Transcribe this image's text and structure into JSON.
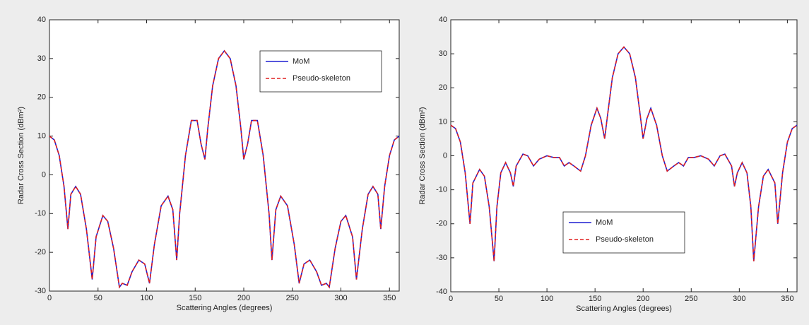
{
  "chart_data": [
    {
      "type": "line",
      "xlabel": "Scattering Angles (degrees)",
      "ylabel": "Radar Cross Section (dBm²)",
      "x": [
        0,
        5,
        10,
        15,
        19,
        22,
        27,
        32,
        38,
        44,
        48,
        55,
        60,
        66,
        72,
        75,
        80,
        85,
        92,
        98,
        103,
        108,
        115,
        122,
        127,
        131,
        134,
        140,
        146,
        152,
        156,
        160,
        163,
        168,
        174,
        180,
        186,
        192,
        197,
        200,
        204,
        208,
        214,
        220,
        226,
        229,
        233,
        238,
        245,
        252,
        257,
        262,
        268,
        275,
        280,
        285,
        288,
        294,
        300,
        305,
        312,
        316,
        322,
        328,
        333,
        338,
        341,
        345,
        350,
        355,
        360
      ],
      "series": [
        {
          "name": "MoM",
          "color": "#1f1fd0",
          "values": [
            10,
            9,
            5,
            -3,
            -14,
            -5,
            -3,
            -5,
            -14,
            -27,
            -16,
            -10.5,
            -12,
            -19,
            -29,
            -28,
            -28.5,
            -25,
            -22,
            -23,
            -28,
            -18,
            -8,
            -5.5,
            -9,
            -22,
            -10,
            5,
            14,
            14,
            8,
            4,
            12,
            23,
            30,
            32,
            30,
            23,
            12,
            4,
            8,
            14,
            14,
            5,
            -10,
            -22,
            -9,
            -5.5,
            -8,
            -18,
            -28,
            -23,
            -22,
            -25,
            -28.5,
            -28,
            -29,
            -19,
            -12,
            -10.5,
            -16,
            -27,
            -14,
            -5,
            -3,
            -5,
            -14,
            -3,
            5,
            9,
            10
          ]
        },
        {
          "name": "Pseudo-skeleton",
          "color": "#e02020",
          "dashed": true,
          "values": [
            10,
            9,
            5,
            -3,
            -14,
            -5,
            -3,
            -5,
            -14,
            -27,
            -16,
            -10.5,
            -12,
            -19,
            -29,
            -28,
            -28.5,
            -25,
            -22,
            -23,
            -28,
            -18,
            -8,
            -5.5,
            -9,
            -22,
            -10,
            5,
            14,
            14,
            8,
            4,
            12,
            23,
            30,
            32,
            30,
            23,
            12,
            4,
            8,
            14,
            14,
            5,
            -10,
            -22,
            -9,
            -5.5,
            -8,
            -18,
            -28,
            -23,
            -22,
            -25,
            -28.5,
            -28,
            -29,
            -19,
            -12,
            -10.5,
            -16,
            -27,
            -14,
            -5,
            -3,
            -5,
            -14,
            -3,
            5,
            9,
            10
          ]
        }
      ],
      "xlim": [
        0,
        360
      ],
      "xticks": [
        0,
        50,
        100,
        150,
        200,
        250,
        300,
        350
      ],
      "ylim": [
        -30,
        40
      ],
      "yticks": [
        -30,
        -20,
        -10,
        0,
        10,
        20,
        30,
        40
      ],
      "legend": "upper right"
    },
    {
      "type": "line",
      "xlabel": "Scattering Angles (degrees)",
      "ylabel": "Radar Cross Section (dBm²)",
      "x": [
        0,
        5,
        10,
        15,
        20,
        23,
        30,
        35,
        40,
        45,
        48,
        52,
        57,
        62,
        65,
        68,
        75,
        80,
        86,
        92,
        100,
        107,
        113,
        118,
        123,
        128,
        135,
        140,
        146,
        152,
        156,
        160,
        163,
        168,
        174,
        180,
        186,
        192,
        197,
        200,
        204,
        208,
        214,
        220,
        225,
        232,
        237,
        242,
        247,
        253,
        260,
        268,
        274,
        280,
        285,
        292,
        295,
        298,
        303,
        308,
        312,
        315,
        320,
        325,
        330,
        337,
        340,
        345,
        350,
        355,
        360
      ],
      "series": [
        {
          "name": "MoM",
          "color": "#1f1fd0",
          "values": [
            9,
            8,
            4,
            -5,
            -20,
            -8,
            -4,
            -6,
            -15,
            -31,
            -15,
            -5,
            -2,
            -5,
            -9,
            -3,
            0.5,
            0,
            -3,
            -1,
            0,
            -0.5,
            -0.5,
            -3,
            -2,
            -3,
            -4.5,
            0,
            9,
            14,
            11,
            5,
            12,
            23,
            30,
            32,
            30,
            23,
            12,
            5,
            11,
            14,
            9,
            0,
            -4.5,
            -3,
            -2,
            -3,
            -0.5,
            -0.5,
            0,
            -1,
            -3,
            0,
            0.5,
            -3,
            -9,
            -5,
            -2,
            -5,
            -15,
            -31,
            -15,
            -6,
            -4,
            -8,
            -20,
            -5,
            4,
            8,
            9
          ]
        },
        {
          "name": "Pseudo-skeleton",
          "color": "#e02020",
          "dashed": true,
          "values": [
            9,
            8,
            4,
            -5,
            -20,
            -8,
            -4,
            -6,
            -15,
            -31,
            -15,
            -5,
            -2,
            -5,
            -9,
            -3,
            0.5,
            0,
            -3,
            -1,
            0,
            -0.5,
            -0.5,
            -3,
            -2,
            -3,
            -4.5,
            0,
            9,
            14,
            11,
            5,
            12,
            23,
            30,
            32,
            30,
            23,
            12,
            5,
            11,
            14,
            9,
            0,
            -4.5,
            -3,
            -2,
            -3,
            -0.5,
            -0.5,
            0,
            -1,
            -3,
            0,
            0.5,
            -3,
            -9,
            -5,
            -2,
            -5,
            -15,
            -31,
            -15,
            -6,
            -4,
            -8,
            -20,
            -5,
            4,
            8,
            9
          ]
        }
      ],
      "xlim": [
        0,
        360
      ],
      "xticks": [
        0,
        50,
        100,
        150,
        200,
        250,
        300,
        350
      ],
      "ylim": [
        -40,
        40
      ],
      "yticks": [
        -40,
        -30,
        -20,
        -10,
        0,
        10,
        20,
        30,
        40
      ],
      "legend": "lower center"
    }
  ]
}
